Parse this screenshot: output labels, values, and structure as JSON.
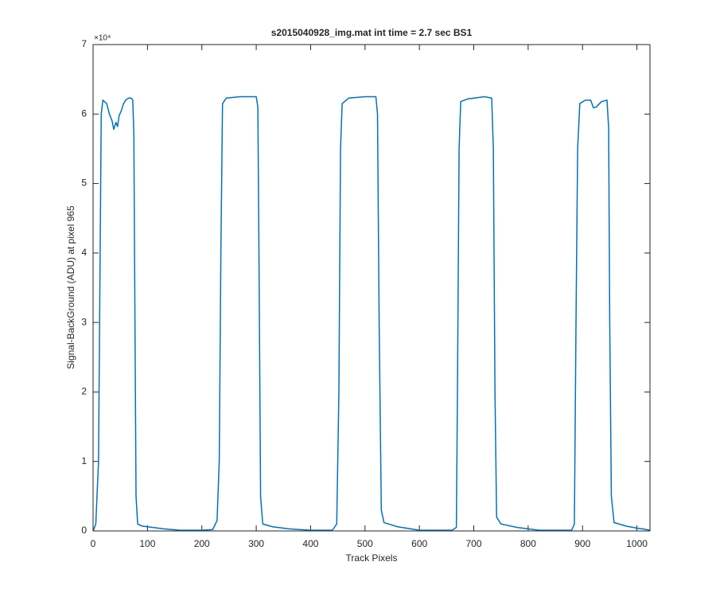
{
  "chart_data": {
    "type": "line",
    "title": "s2015040928_img.mat int time = 2.7 sec   BS1",
    "xlabel": "Track Pixels",
    "ylabel": "Signal-BackGround (ADU) at pixel 965",
    "y_exponent": "×10⁴",
    "xlim": [
      0,
      1024
    ],
    "ylim": [
      0,
      70000
    ],
    "xticks": [
      0,
      100,
      200,
      300,
      400,
      500,
      600,
      700,
      800,
      900,
      1000
    ],
    "yticks": [
      0,
      {
        "value": 10000,
        "label": "1"
      },
      {
        "value": 20000,
        "label": "2"
      },
      {
        "value": 30000,
        "label": "3"
      },
      {
        "value": 40000,
        "label": "4"
      },
      {
        "value": 50000,
        "label": "5"
      },
      {
        "value": 60000,
        "label": "6"
      },
      {
        "value": 70000,
        "label": "7"
      }
    ],
    "series": [
      {
        "color": "#0072bd",
        "x": [
          0,
          5,
          10,
          13,
          15,
          18,
          25,
          30,
          35,
          38,
          42,
          45,
          48,
          52,
          56,
          60,
          65,
          70,
          73,
          75,
          77,
          79,
          82,
          90,
          100,
          130,
          160,
          200,
          220,
          228,
          232,
          235,
          238,
          245,
          270,
          300,
          303,
          305,
          308,
          312,
          330,
          360,
          400,
          440,
          448,
          452,
          455,
          458,
          470,
          500,
          520,
          523,
          526,
          530,
          535,
          560,
          600,
          660,
          668,
          670,
          673,
          676,
          690,
          720,
          733,
          736,
          739,
          742,
          750,
          780,
          820,
          880,
          885,
          888,
          891,
          895,
          905,
          915,
          920,
          925,
          935,
          945,
          948,
          950,
          953,
          958,
          980,
          1000,
          1010,
          1024
        ],
        "values": [
          0,
          1000,
          10000,
          40000,
          60000,
          62000,
          61500,
          60000,
          59000,
          57800,
          58800,
          58200,
          59800,
          60500,
          61500,
          62000,
          62300,
          62300,
          62000,
          57000,
          30000,
          5000,
          1000,
          700,
          600,
          300,
          100,
          100,
          200,
          1500,
          10000,
          40000,
          61500,
          62300,
          62500,
          62500,
          61000,
          40000,
          5000,
          1000,
          600,
          300,
          100,
          100,
          1000,
          20000,
          55000,
          61500,
          62300,
          62500,
          62500,
          60000,
          30000,
          3000,
          1200,
          600,
          100,
          100,
          500,
          20000,
          55000,
          61800,
          62200,
          62500,
          62300,
          55000,
          20000,
          2000,
          1000,
          500,
          100,
          100,
          1000,
          30000,
          55000,
          61500,
          62000,
          62000,
          60900,
          61000,
          61800,
          62000,
          58000,
          30000,
          5000,
          1200,
          700,
          400,
          300,
          100
        ]
      }
    ]
  }
}
